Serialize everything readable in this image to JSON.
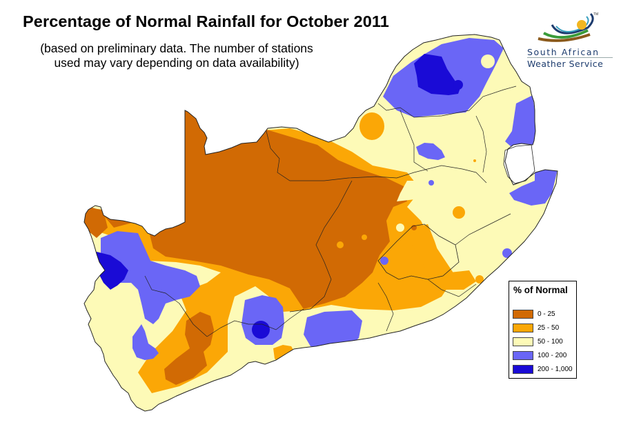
{
  "header": {
    "title": "Percentage of Normal Rainfall for October 2011",
    "subtitle_line1": "(based on preliminary data. The number of stations",
    "subtitle_line2": "used may vary depending on data availability)"
  },
  "logo": {
    "line1": "South African",
    "line2": "Weather Service",
    "trademark": "TM"
  },
  "legend": {
    "title": "% of Normal",
    "items": [
      {
        "label": "0 - 25",
        "color": "#d16a04"
      },
      {
        "label": "25 - 50",
        "color": "#fba706"
      },
      {
        "label": "50 - 100",
        "color": "#fdfab7"
      },
      {
        "label": "100 - 200",
        "color": "#6a66f6"
      },
      {
        "label": "200 - 1,000",
        "color": "#1a0bd6"
      }
    ]
  },
  "colors": {
    "c0_25": "#d16a04",
    "c25_50": "#fba706",
    "c50_100": "#fdfab7",
    "c100_200": "#6a66f6",
    "c200_1000": "#1a0bd6",
    "border": "#222222"
  }
}
